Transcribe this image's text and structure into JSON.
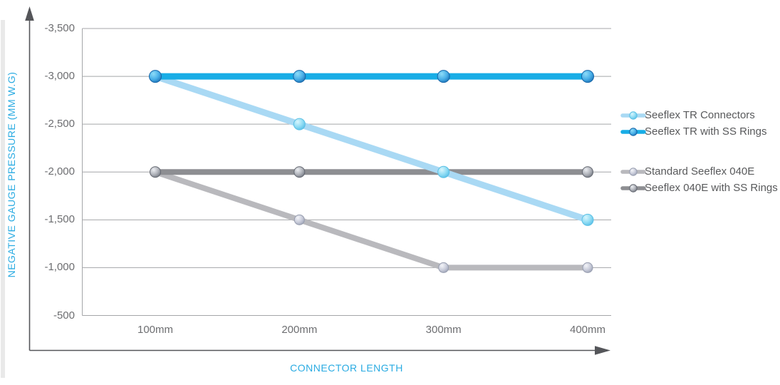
{
  "chart_data": {
    "type": "line",
    "title": "",
    "xlabel": "CONNECTOR LENGTH",
    "ylabel": "NEGATIVE GAUGE PRESSURE (MM W.G)",
    "x_categories": [
      "100mm",
      "200mm",
      "300mm",
      "400mm"
    ],
    "y_ticks": [
      {
        "label": "-3,500",
        "value": -3500
      },
      {
        "label": "-3,000",
        "value": -3000
      },
      {
        "label": "-2,500",
        "value": -2500
      },
      {
        "label": "-2,000",
        "value": -2000
      },
      {
        "label": "-1,500",
        "value": -1500
      },
      {
        "label": "-1,000",
        "value": -1000
      },
      {
        "label": "-500",
        "value": -500
      }
    ],
    "ylim_top": -3500,
    "ylim_bottom": -500,
    "grid": "horizontal",
    "legend_position": "right",
    "series": [
      {
        "name": "Standard Seeflex 040E",
        "values": [
          -2000,
          -1500,
          -1000,
          -1000
        ],
        "line_color": "#b9b9bd",
        "line_width": 8,
        "marker": {
          "r": 7,
          "center": "#f4f5f9",
          "mid": "#c9ccda",
          "edge": "#9aa0b4",
          "rim": "#979daf"
        }
      },
      {
        "name": "Seeflex 040E with SS Rings",
        "values": [
          -2000,
          -2000,
          -2000,
          -2000
        ],
        "line_color": "#8d8e92",
        "line_width": 8,
        "marker": {
          "r": 7.5,
          "center": "#eceef2",
          "mid": "#b0b3ba",
          "edge": "#6e737d",
          "rim": "#636770"
        }
      },
      {
        "name": "Seeflex TR Connectors",
        "values": [
          -3000,
          -2500,
          -2000,
          -1500
        ],
        "line_color": "#a9d9f4",
        "line_width": 9,
        "marker": {
          "r": 8,
          "center": "#d9f6fd",
          "mid": "#8fdcf4",
          "edge": "#52bce6",
          "rim": "#5cc0e4"
        }
      },
      {
        "name": "Seeflex TR with SS Rings",
        "values": [
          -3000,
          -3000,
          -3000,
          -3000
        ],
        "line_color": "#18ade6",
        "line_width": 9,
        "marker": {
          "r": 8.5,
          "center": "#8edcf8",
          "mid": "#4ab0e8",
          "edge": "#1b6fb4",
          "rim": "#1565a8"
        }
      }
    ],
    "legend_groups": [
      [
        "Seeflex TR Connectors",
        "Seeflex TR with SS Rings"
      ],
      [
        "Standard Seeflex 040E",
        "Seeflex 040E with SS Rings"
      ]
    ]
  },
  "colors": {
    "accent_text": "#2aabe2",
    "tick_text": "#6d6e71",
    "legend_text": "#58595b",
    "gridline": "#a4a6a9",
    "axis_arrow": "#55565a"
  }
}
